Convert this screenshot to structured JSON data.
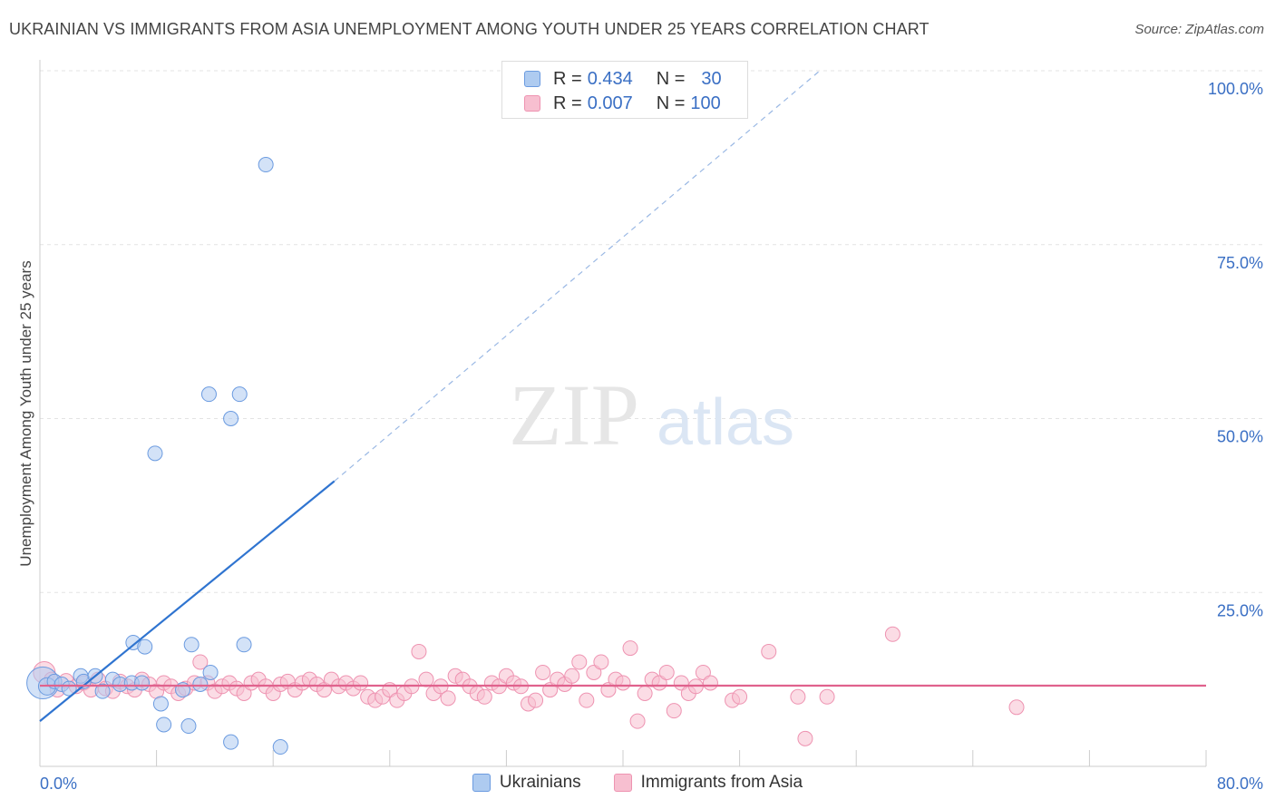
{
  "title": "UKRAINIAN VS IMMIGRANTS FROM ASIA UNEMPLOYMENT AMONG YOUTH UNDER 25 YEARS CORRELATION CHART",
  "source": "Source: ZipAtlas.com",
  "watermark": {
    "zip": "ZIP",
    "atlas": "atlas"
  },
  "legend_top": {
    "row1": {
      "r_label": "R =",
      "r_value": "0.434",
      "n_label": "N =",
      "n_value": "30"
    },
    "row2": {
      "r_label": "R =",
      "r_value": "0.007",
      "n_label": "N =",
      "n_value": "100"
    }
  },
  "legend_bottom": {
    "s1": "Ukrainians",
    "s2": "Immigrants from Asia"
  },
  "colors": {
    "blue_fill": "#aecbf0",
    "blue_stroke": "#6b9be0",
    "blue_line": "#2f74d0",
    "pink_fill": "#f7bfd0",
    "pink_stroke": "#ee93b1",
    "pink_line": "#e0628d",
    "axis_label": "#3a6fc4"
  },
  "chart_data": {
    "type": "scatter",
    "title": "UKRAINIAN VS IMMIGRANTS FROM ASIA UNEMPLOYMENT AMONG YOUTH UNDER 25 YEARS CORRELATION CHART",
    "xlabel": "",
    "ylabel": "Unemployment Among Youth under 25 years",
    "xlim": [
      0,
      80
    ],
    "ylim": [
      0,
      100
    ],
    "x_tick_labels": [
      "0.0%",
      "80.0%"
    ],
    "y_tick_values": [
      25,
      50,
      75,
      100
    ],
    "y_tick_labels": [
      "25.0%",
      "50.0%",
      "75.0%",
      "100.0%"
    ],
    "grid": true,
    "series": [
      {
        "name": "Ukrainians",
        "R": 0.434,
        "N": 30,
        "trend": {
          "x0": 0,
          "y0": 6.5,
          "x_solid_end": 20.2,
          "y_solid_end": 41,
          "x_dash_end": 53.5,
          "y_dash_end": 100
        },
        "points": [
          [
            0.2,
            12.0,
            2.2
          ],
          [
            0.5,
            11.5,
            1.2
          ],
          [
            1.0,
            12.2,
            1.0
          ],
          [
            1.5,
            11.8,
            1.0
          ],
          [
            2.0,
            11.2,
            1.0
          ],
          [
            2.8,
            13.0,
            1.0
          ],
          [
            3.0,
            12.2,
            1.0
          ],
          [
            3.8,
            13.0,
            1.0
          ],
          [
            4.3,
            10.8,
            1.0
          ],
          [
            5.0,
            12.5,
            1.0
          ],
          [
            5.5,
            11.8,
            1.0
          ],
          [
            6.3,
            12.0,
            1.0
          ],
          [
            7.0,
            12.0,
            1.0
          ],
          [
            6.4,
            17.8,
            1.0
          ],
          [
            7.2,
            17.2,
            1.0
          ],
          [
            7.9,
            45.0,
            1.0
          ],
          [
            8.3,
            9.0,
            1.0
          ],
          [
            8.5,
            6.0,
            1.0
          ],
          [
            9.8,
            11.0,
            1.0
          ],
          [
            10.2,
            5.8,
            1.0
          ],
          [
            10.4,
            17.5,
            1.0
          ],
          [
            11.0,
            11.8,
            1.0
          ],
          [
            11.7,
            13.5,
            1.0
          ],
          [
            11.6,
            53.5,
            1.0
          ],
          [
            13.1,
            50.0,
            1.0
          ],
          [
            13.7,
            53.5,
            1.0
          ],
          [
            14.0,
            17.5,
            1.0
          ],
          [
            13.1,
            3.5,
            1.0
          ],
          [
            15.5,
            86.5,
            1.0
          ],
          [
            16.5,
            2.8,
            1.0
          ]
        ]
      },
      {
        "name": "Immigrants from Asia",
        "R": 0.007,
        "N": 100,
        "trend": {
          "x0": 0,
          "y0": 11.6,
          "x1": 80,
          "y1": 11.6
        },
        "points": [
          [
            0.3,
            13.5,
            1.5
          ],
          [
            0.8,
            12.5,
            1.0
          ],
          [
            1.2,
            11.0,
            1.0
          ],
          [
            1.8,
            12.3,
            1.0
          ],
          [
            2.5,
            11.5,
            1.0
          ],
          [
            3.0,
            12.0,
            1.0
          ],
          [
            3.5,
            11.0,
            1.0
          ],
          [
            4.0,
            12.5,
            1.0
          ],
          [
            4.5,
            11.2,
            1.0
          ],
          [
            5.0,
            10.8,
            1.0
          ],
          [
            5.5,
            12.2,
            1.0
          ],
          [
            6.0,
            11.5,
            1.0
          ],
          [
            6.5,
            11.0,
            1.0
          ],
          [
            7.0,
            12.5,
            1.0
          ],
          [
            7.5,
            11.8,
            1.0
          ],
          [
            8.0,
            10.8,
            1.0
          ],
          [
            8.5,
            12.0,
            1.0
          ],
          [
            9.0,
            11.5,
            1.0
          ],
          [
            9.5,
            10.5,
            1.0
          ],
          [
            10.0,
            11.2,
            1.0
          ],
          [
            10.6,
            12.0,
            1.0
          ],
          [
            11.0,
            15.0,
            1.0
          ],
          [
            11.5,
            12.0,
            1.0
          ],
          [
            12.0,
            10.8,
            1.0
          ],
          [
            12.5,
            11.5,
            1.0
          ],
          [
            13.0,
            12.0,
            1.0
          ],
          [
            13.5,
            11.2,
            1.0
          ],
          [
            14.0,
            10.5,
            1.0
          ],
          [
            14.5,
            12.0,
            1.0
          ],
          [
            15.0,
            12.5,
            1.0
          ],
          [
            15.5,
            11.5,
            1.0
          ],
          [
            16.0,
            10.5,
            1.0
          ],
          [
            16.5,
            11.8,
            1.0
          ],
          [
            17.0,
            12.2,
            1.0
          ],
          [
            17.5,
            11.0,
            1.0
          ],
          [
            18.0,
            12.0,
            1.0
          ],
          [
            18.5,
            12.5,
            1.0
          ],
          [
            19.0,
            11.8,
            1.0
          ],
          [
            19.5,
            11.0,
            1.0
          ],
          [
            20.0,
            12.5,
            1.0
          ],
          [
            20.5,
            11.5,
            1.0
          ],
          [
            21.0,
            12.0,
            1.0
          ],
          [
            21.5,
            11.2,
            1.0
          ],
          [
            22.0,
            12.0,
            1.0
          ],
          [
            22.5,
            10.0,
            1.0
          ],
          [
            23.0,
            9.5,
            1.0
          ],
          [
            23.5,
            10.0,
            1.0
          ],
          [
            24.0,
            11.0,
            1.0
          ],
          [
            24.5,
            9.5,
            1.0
          ],
          [
            25.0,
            10.5,
            1.0
          ],
          [
            25.5,
            11.5,
            1.0
          ],
          [
            26.0,
            16.5,
            1.0
          ],
          [
            26.5,
            12.5,
            1.0
          ],
          [
            27.0,
            10.5,
            1.0
          ],
          [
            27.5,
            11.5,
            1.0
          ],
          [
            28.0,
            9.8,
            1.0
          ],
          [
            28.5,
            13.0,
            1.0
          ],
          [
            29.0,
            12.5,
            1.0
          ],
          [
            29.5,
            11.5,
            1.0
          ],
          [
            30.0,
            10.5,
            1.0
          ],
          [
            30.5,
            10.0,
            1.0
          ],
          [
            31.0,
            12.0,
            1.0
          ],
          [
            31.5,
            11.5,
            1.0
          ],
          [
            32.0,
            13.0,
            1.0
          ],
          [
            32.5,
            12.0,
            1.0
          ],
          [
            33.0,
            11.5,
            1.0
          ],
          [
            33.5,
            9.0,
            1.0
          ],
          [
            34.0,
            9.5,
            1.0
          ],
          [
            34.5,
            13.5,
            1.0
          ],
          [
            35.0,
            11.0,
            1.0
          ],
          [
            35.5,
            12.5,
            1.0
          ],
          [
            36.0,
            11.8,
            1.0
          ],
          [
            36.5,
            13.0,
            1.0
          ],
          [
            37.0,
            15.0,
            1.0
          ],
          [
            37.5,
            9.5,
            1.0
          ],
          [
            38.0,
            13.5,
            1.0
          ],
          [
            38.5,
            15.0,
            1.0
          ],
          [
            39.0,
            11.0,
            1.0
          ],
          [
            39.5,
            12.5,
            1.0
          ],
          [
            40.0,
            12.0,
            1.0
          ],
          [
            40.5,
            17.0,
            1.0
          ],
          [
            41.0,
            6.5,
            1.0
          ],
          [
            41.5,
            10.5,
            1.0
          ],
          [
            42.0,
            12.5,
            1.0
          ],
          [
            42.5,
            12.0,
            1.0
          ],
          [
            43.0,
            13.5,
            1.0
          ],
          [
            43.5,
            8.0,
            1.0
          ],
          [
            44.0,
            12.0,
            1.0
          ],
          [
            44.5,
            10.5,
            1.0
          ],
          [
            45.0,
            11.5,
            1.0
          ],
          [
            45.5,
            13.5,
            1.0
          ],
          [
            46.0,
            12.0,
            1.0
          ],
          [
            47.5,
            9.5,
            1.0
          ],
          [
            48.0,
            10.0,
            1.0
          ],
          [
            50.0,
            16.5,
            1.0
          ],
          [
            52.0,
            10.0,
            1.0
          ],
          [
            52.5,
            4.0,
            1.0
          ],
          [
            54.0,
            10.0,
            1.0
          ],
          [
            58.5,
            19.0,
            1.0
          ],
          [
            67.0,
            8.5,
            1.0
          ]
        ]
      }
    ]
  }
}
